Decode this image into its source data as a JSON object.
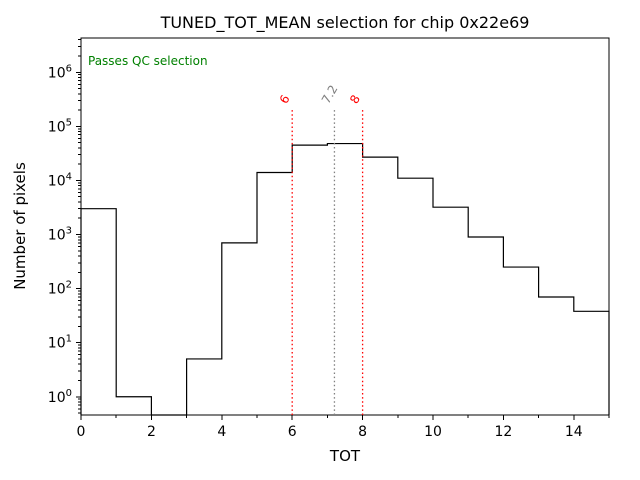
{
  "chart_data": {
    "type": "step-histogram",
    "title": "TUNED_TOT_MEAN selection for chip 0x22e69",
    "xlabel": "TOT",
    "ylabel": "Number of pixels",
    "yscale": "log",
    "xlim": [
      0,
      15
    ],
    "ylim": [
      0.46,
      4300000
    ],
    "bin_edges": [
      0,
      1,
      2,
      3,
      4,
      5,
      6,
      7,
      8,
      9,
      10,
      11,
      12,
      13,
      14,
      15
    ],
    "counts": [
      3000,
      1,
      0,
      5,
      700,
      14000,
      45000,
      48000,
      27000,
      11000,
      3200,
      900,
      250,
      70,
      38
    ],
    "xticks": [
      0,
      2,
      4,
      6,
      8,
      10,
      12,
      14
    ],
    "ytick_exponents": [
      0,
      1,
      2,
      3,
      4,
      5,
      6
    ],
    "line_color": "#000000",
    "background": "#ffffff",
    "grid": false,
    "legend": null,
    "annotation": {
      "text": "Passes QC selection",
      "color": "#008000"
    },
    "vlines": [
      {
        "x": 6,
        "label": "6",
        "color": "#ff0000",
        "style": "dotted"
      },
      {
        "x": 7.2,
        "label": "7.2",
        "color": "#808080",
        "style": "dotted"
      },
      {
        "x": 8,
        "label": "8",
        "color": "#ff0000",
        "style": "dotted"
      }
    ],
    "vline_ymax_fraction": 0.81
  }
}
